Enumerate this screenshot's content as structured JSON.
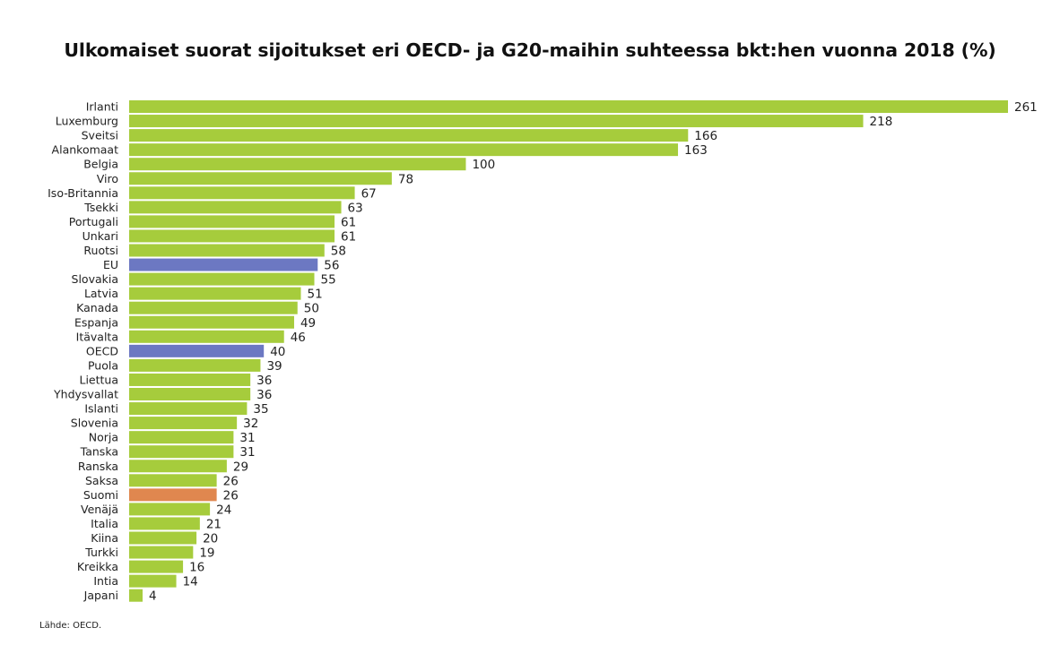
{
  "chart_data": {
    "type": "bar",
    "orientation": "horizontal",
    "title": "Ulkomaiset suorat sijoitukset eri OECD- ja G20-maihin suhteessa bkt:hen vuonna 2018 (%)",
    "xlabel": "",
    "ylabel": "",
    "xlim": [
      0,
      261
    ],
    "grid": false,
    "categories": [
      "Irlanti",
      "Luxemburg",
      "Sveitsi",
      "Alankomaat",
      "Belgia",
      "Viro",
      "Iso-Britannia",
      "Tsekki",
      "Portugali",
      "Unkari",
      "Ruotsi",
      "EU",
      "Slovakia",
      "Latvia",
      "Kanada",
      "Espanja",
      "Itävalta",
      "OECD",
      "Puola",
      "Liettua",
      "Yhdysvallat",
      "Islanti",
      "Slovenia",
      "Norja",
      "Tanska",
      "Ranska",
      "Saksa",
      "Suomi",
      "Venäjä",
      "Italia",
      "Kiina",
      "Turkki",
      "Kreikka",
      "Intia",
      "Japani"
    ],
    "values": [
      261,
      218,
      166,
      163,
      100,
      78,
      67,
      63,
      61,
      61,
      58,
      56,
      55,
      51,
      50,
      49,
      46,
      40,
      39,
      36,
      36,
      35,
      32,
      31,
      31,
      29,
      26,
      26,
      24,
      21,
      20,
      19,
      16,
      14,
      4
    ],
    "highlights": {
      "EU": "aggregate",
      "OECD": "aggregate",
      "Suomi": "focus"
    },
    "colors": {
      "default": "#a6cc3c",
      "aggregate": "#6c78c2",
      "focus": "#e0874f"
    }
  },
  "source": "Lähde: OECD."
}
